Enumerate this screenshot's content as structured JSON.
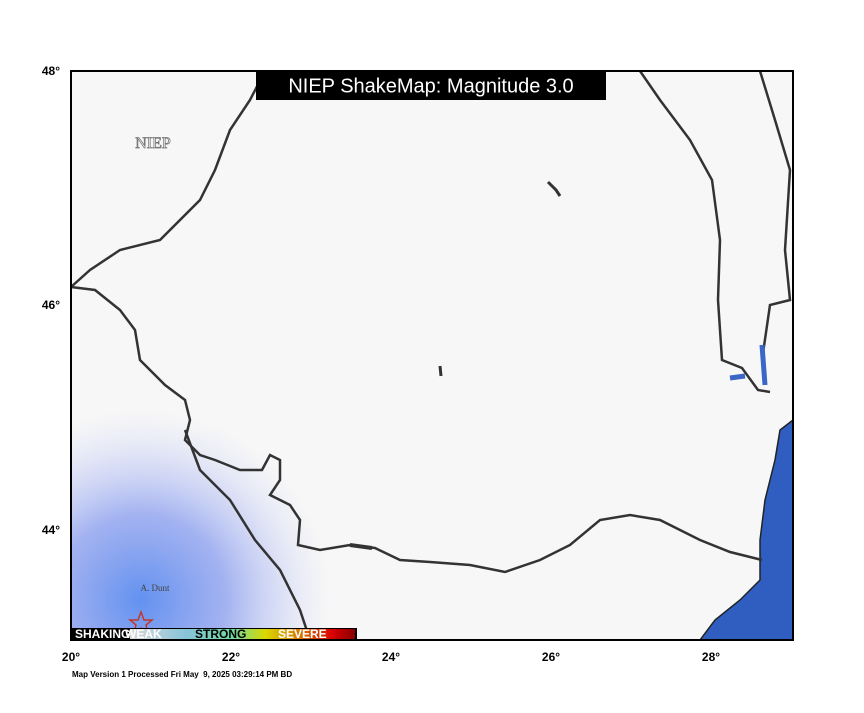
{
  "map": {
    "title": "NIEP ShakeMap: Magnitude 3.0",
    "watermark": "NIEP",
    "station_label": "A. Dunt",
    "lat_labels": [
      "48°",
      "46°",
      "44°"
    ],
    "lon_labels": [
      "20°",
      "22°",
      "24°",
      "26°",
      "28°"
    ],
    "legend": [
      "SHAKING",
      "WEAK",
      "STRONG",
      "SEVERE"
    ],
    "footer": "Map Version 1 Processed Fri May  9, 2025 03:29:14 PM BD"
  }
}
